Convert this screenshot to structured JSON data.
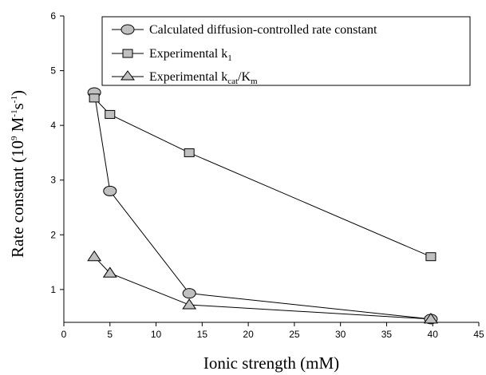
{
  "chart_data": {
    "type": "line",
    "xlabel": "Ionic strength (mM)",
    "ylabel": "Rate constant (10^9 M^-1 s^-1)",
    "xlim": [
      0,
      45
    ],
    "ylim": [
      0.4,
      6
    ],
    "x_ticks": [
      "0",
      "5",
      "10",
      "15",
      "20",
      "25",
      "30",
      "35",
      "40",
      "45"
    ],
    "y_ticks": [
      "1",
      "2",
      "3",
      "4",
      "5",
      "6"
    ],
    "grid": false,
    "legend_position": "top-right",
    "legend": [
      "Calculated diffusion-controlled rate constant",
      "Experimental k1",
      "Experimental kcat/Km"
    ],
    "series": [
      {
        "name": "Calculated diffusion-controlled rate constant",
        "marker": "circle",
        "points": [
          [
            3.3,
            4.6
          ],
          [
            5.0,
            2.8
          ],
          [
            13.6,
            0.93
          ],
          [
            39.8,
            0.46
          ]
        ]
      },
      {
        "name": "Experimental k1",
        "marker": "square",
        "points": [
          [
            3.3,
            4.5
          ],
          [
            5.0,
            4.2
          ],
          [
            13.6,
            3.5
          ],
          [
            39.8,
            1.6
          ]
        ]
      },
      {
        "name": "Experimental kcat/Km",
        "marker": "triangle",
        "points": [
          [
            3.3,
            1.6
          ],
          [
            5.0,
            1.3
          ],
          [
            13.6,
            0.72
          ],
          [
            39.8,
            0.46
          ]
        ]
      }
    ],
    "marker_fill": "#c0c0c0",
    "line_color": "#000000"
  },
  "labels": {
    "xlabel": "Ionic strength (mM)",
    "ylabel_main": "Rate constant (10",
    "ylabel_exp9": "9",
    "ylabel_unit_m": " M",
    "ylabel_exp_m": "-1",
    "ylabel_unit_s": "s",
    "ylabel_exp_s": "-1",
    "ylabel_close": ")",
    "legend1": "Calculated diffusion-controlled rate constant",
    "legend2_main": "Experimental k",
    "legend2_sub": "1",
    "legend3_main": "Experimental k",
    "legend3_sub_cat": "cat",
    "legend3_slash": "/K",
    "legend3_sub_m": "m"
  }
}
